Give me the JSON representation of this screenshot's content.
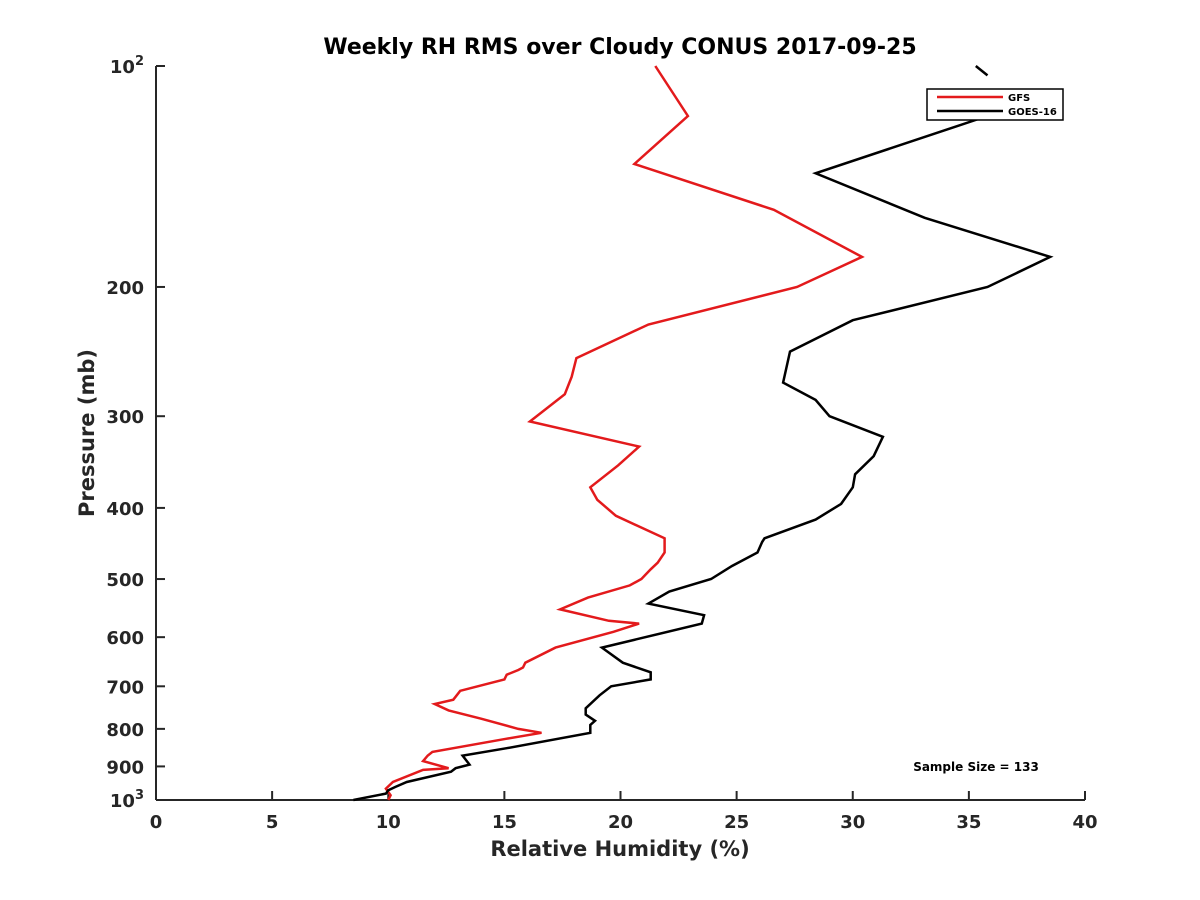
{
  "chart_data": {
    "type": "line",
    "title": "Weekly RH RMS over Cloudy CONUS 2017-09-25",
    "xlabel": "Relative Humidity (%)",
    "ylabel": "Pressure (mb)",
    "xlim": [
      0,
      40
    ],
    "ylim": [
      100,
      1000
    ],
    "yscale": "log",
    "y_reversed": true,
    "x_ticks": [
      0,
      5,
      10,
      15,
      20,
      25,
      30,
      35,
      40
    ],
    "x_tick_labels": [
      "0",
      "5",
      "10",
      "15",
      "20",
      "25",
      "30",
      "35",
      "40"
    ],
    "y_ticks": [
      100,
      200,
      300,
      400,
      500,
      600,
      700,
      800,
      900,
      1000
    ],
    "y_tick_labels": [
      {
        "base": "10",
        "sup": "2"
      },
      {
        "base": "200"
      },
      {
        "base": "300"
      },
      {
        "base": "400"
      },
      {
        "base": "500"
      },
      {
        "base": "600"
      },
      {
        "base": "700"
      },
      {
        "base": "800"
      },
      {
        "base": "900"
      },
      {
        "base": "10",
        "sup": "3"
      }
    ],
    "grid": false,
    "legend_position": "top-right",
    "annotation": "Sample Size = 133",
    "series": [
      {
        "name": "GFS",
        "color": "#e31a1c",
        "points": [
          [
            21.5,
            100
          ],
          [
            22.9,
            117
          ],
          [
            20.6,
            136
          ],
          [
            26.6,
            157
          ],
          [
            30.4,
            182
          ],
          [
            27.6,
            200
          ],
          [
            21.2,
            225
          ],
          [
            18.1,
            250
          ],
          [
            17.9,
            265
          ],
          [
            17.6,
            280
          ],
          [
            16.1,
            305
          ],
          [
            20.8,
            330
          ],
          [
            19.9,
            350
          ],
          [
            18.7,
            375
          ],
          [
            19.0,
            390
          ],
          [
            19.8,
            410
          ],
          [
            21.9,
            440
          ],
          [
            21.9,
            460
          ],
          [
            21.6,
            475
          ],
          [
            21.3,
            485
          ],
          [
            20.9,
            500
          ],
          [
            20.4,
            510
          ],
          [
            18.6,
            530
          ],
          [
            17.4,
            550
          ],
          [
            19.5,
            570
          ],
          [
            20.8,
            575
          ],
          [
            19.7,
            590
          ],
          [
            17.2,
            620
          ],
          [
            15.9,
            650
          ],
          [
            15.8,
            660
          ],
          [
            15.6,
            665
          ],
          [
            15.1,
            675
          ],
          [
            15.0,
            685
          ],
          [
            13.1,
            710
          ],
          [
            12.8,
            730
          ],
          [
            12.0,
            740
          ],
          [
            12.6,
            755
          ],
          [
            14.0,
            775
          ],
          [
            15.6,
            800
          ],
          [
            16.6,
            810
          ],
          [
            15.1,
            825
          ],
          [
            11.9,
            860
          ],
          [
            11.7,
            870
          ],
          [
            11.5,
            885
          ],
          [
            12.6,
            905
          ],
          [
            11.5,
            910
          ],
          [
            10.2,
            945
          ],
          [
            9.9,
            965
          ],
          [
            10.1,
            985
          ],
          [
            10.0,
            1000
          ]
        ]
      },
      {
        "name": "GOES-16",
        "color": "#000000",
        "points": [
          [
            35.8,
            117
          ],
          [
            28.4,
            140
          ],
          [
            33.1,
            161
          ],
          [
            38.5,
            182
          ],
          [
            35.8,
            200
          ],
          [
            30.0,
            222
          ],
          [
            27.3,
            245
          ],
          [
            27.0,
            270
          ],
          [
            28.4,
            285
          ],
          [
            29.0,
            300
          ],
          [
            31.3,
            320
          ],
          [
            30.9,
            340
          ],
          [
            30.1,
            360
          ],
          [
            30.0,
            375
          ],
          [
            29.5,
            395
          ],
          [
            28.4,
            415
          ],
          [
            26.2,
            440
          ],
          [
            26.1,
            445
          ],
          [
            25.9,
            460
          ],
          [
            24.8,
            480
          ],
          [
            23.9,
            500
          ],
          [
            22.1,
            520
          ],
          [
            21.2,
            540
          ],
          [
            23.6,
            560
          ],
          [
            23.5,
            575
          ],
          [
            19.2,
            620
          ],
          [
            20.1,
            650
          ],
          [
            21.3,
            670
          ],
          [
            21.3,
            685
          ],
          [
            19.6,
            700
          ],
          [
            19.1,
            720
          ],
          [
            18.5,
            750
          ],
          [
            18.5,
            765
          ],
          [
            18.9,
            780
          ],
          [
            18.7,
            790
          ],
          [
            18.7,
            810
          ],
          [
            15.1,
            850
          ],
          [
            13.2,
            870
          ],
          [
            13.5,
            895
          ],
          [
            12.9,
            905
          ],
          [
            12.7,
            915
          ],
          [
            10.8,
            945
          ],
          [
            10.3,
            960
          ],
          [
            10.0,
            970
          ],
          [
            9.9,
            980
          ],
          [
            8.5,
            1000
          ]
        ],
        "leader_line": [
          [
            35.3,
            100
          ],
          [
            35.8,
            103
          ]
        ]
      }
    ]
  }
}
